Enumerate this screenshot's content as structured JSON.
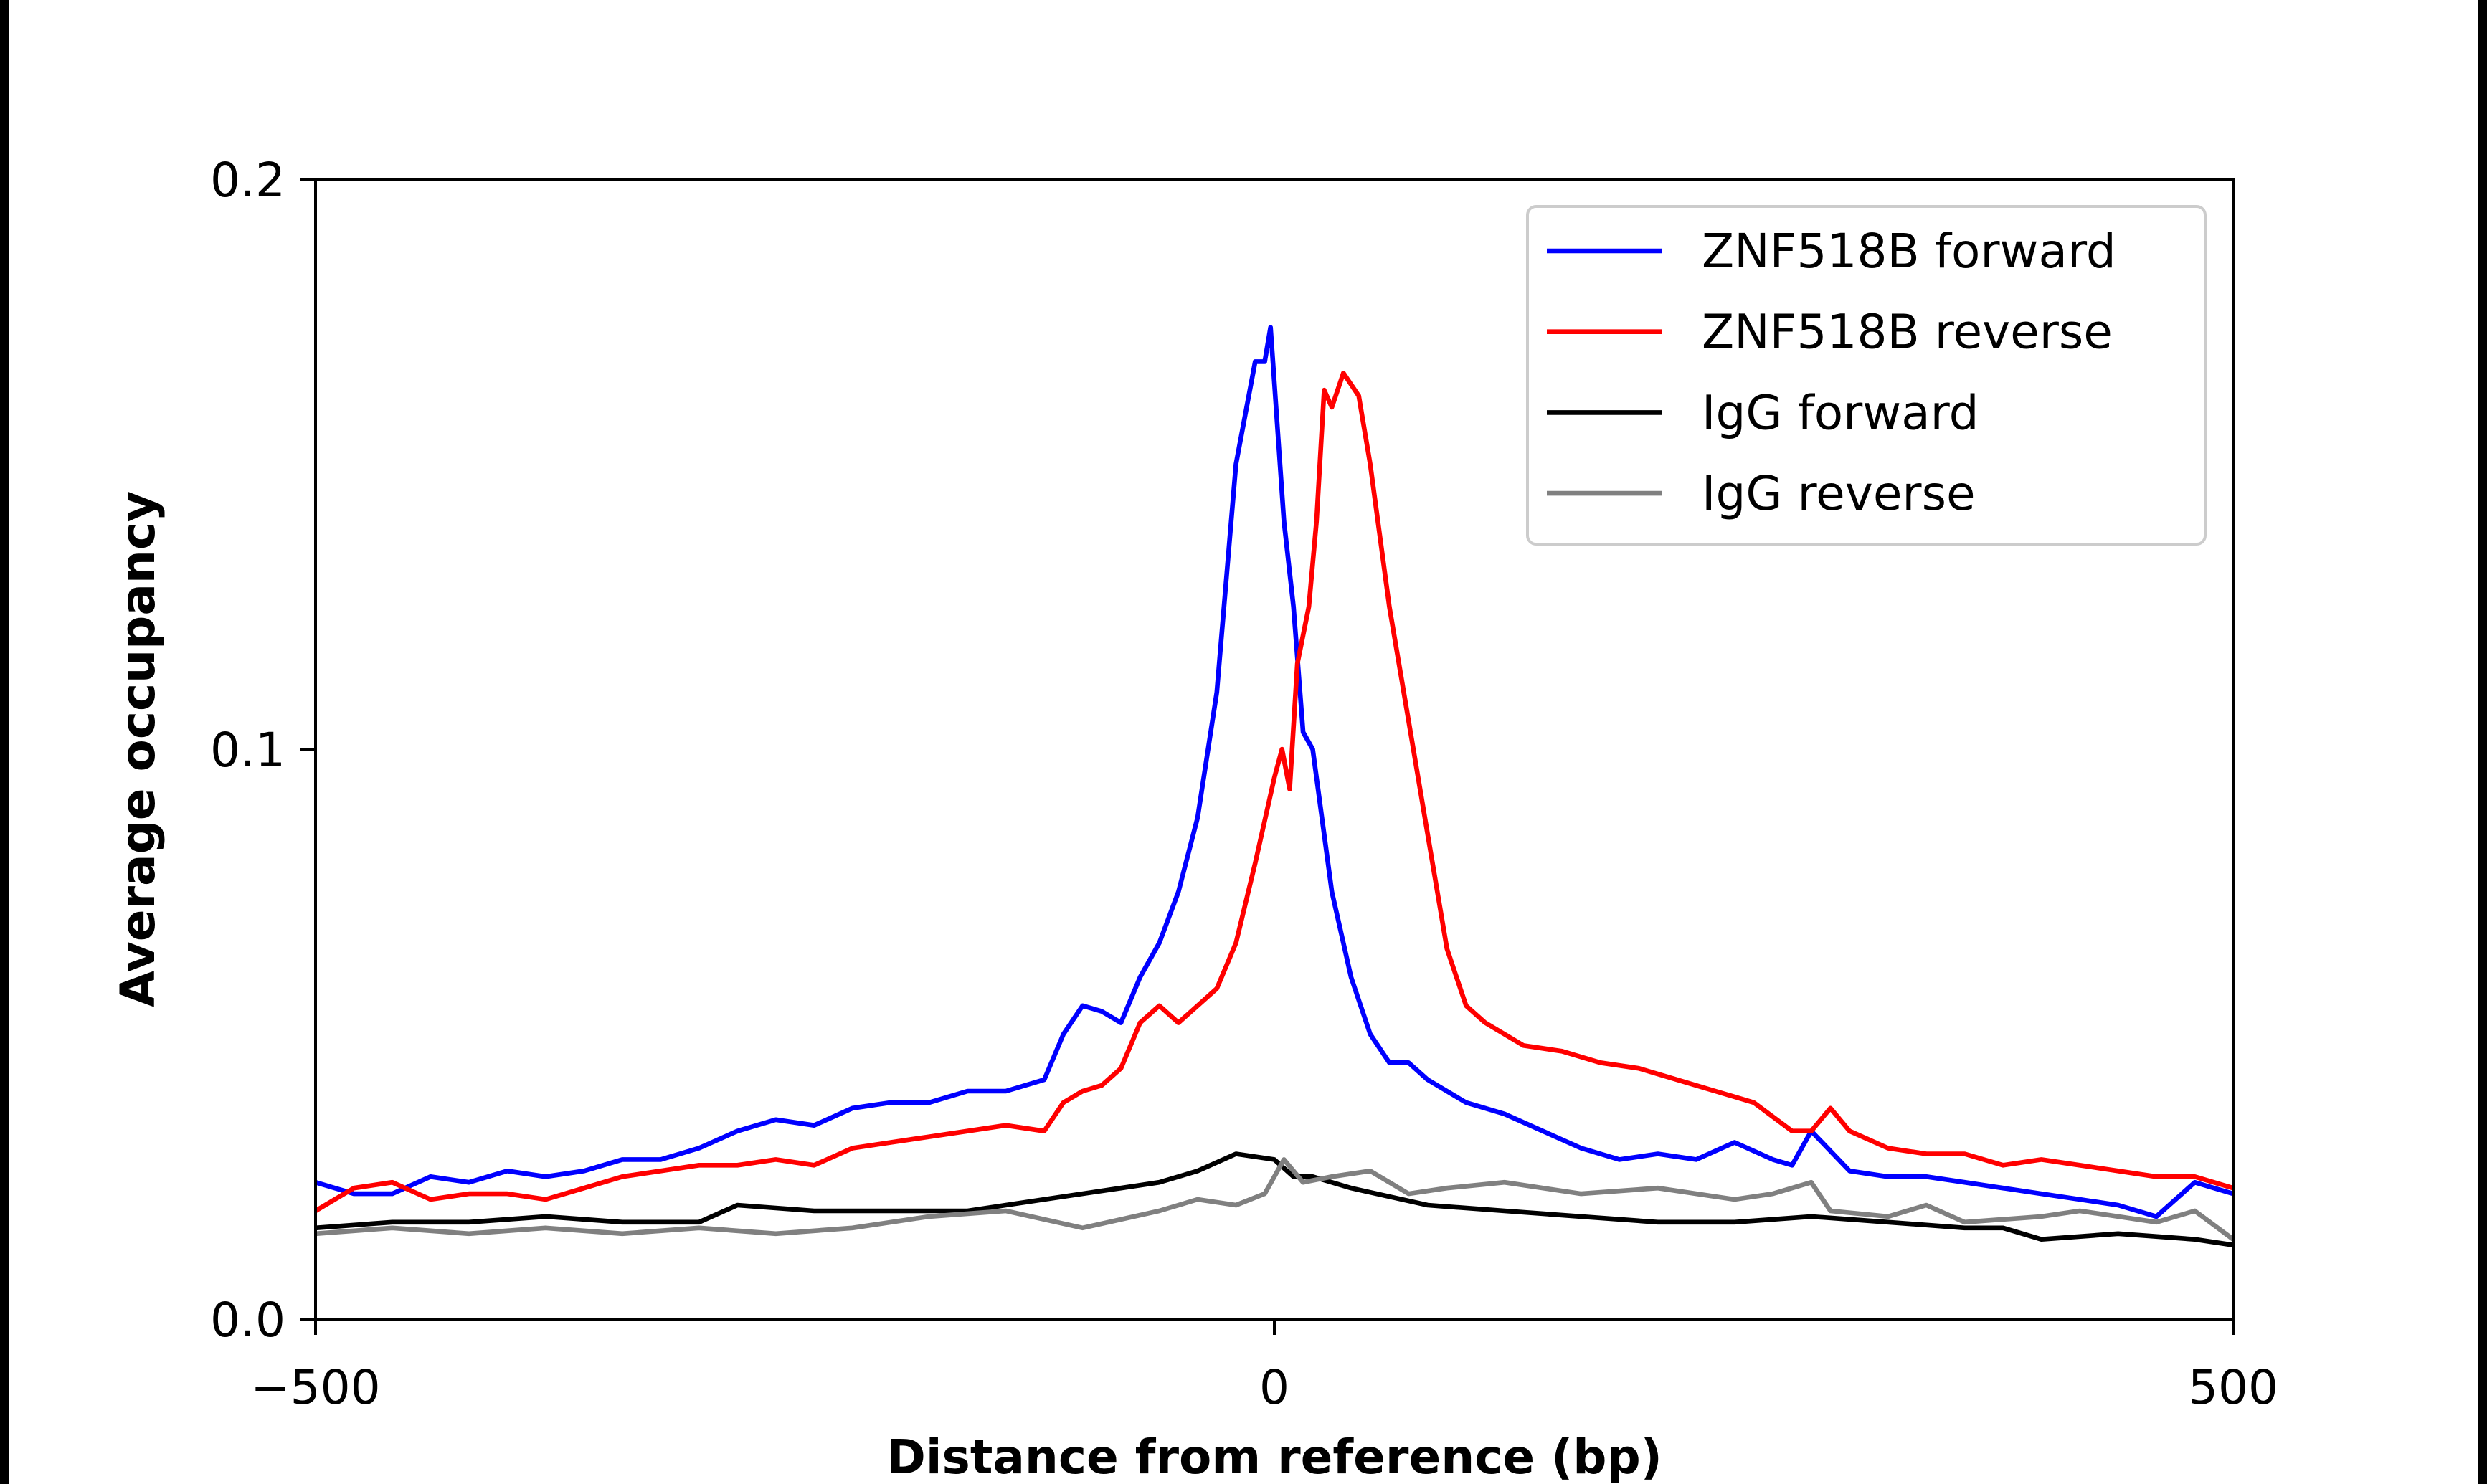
{
  "chart_data": {
    "type": "line",
    "title": "",
    "xlabel": "Distance from reference (bp)",
    "ylabel": "Average occupancy",
    "xlim": [
      -500,
      500
    ],
    "ylim": [
      0.0,
      0.2
    ],
    "xticks": [
      -500,
      0,
      500
    ],
    "xtick_labels": [
      "−500",
      "0",
      "500"
    ],
    "yticks": [
      0.0,
      0.1,
      0.2
    ],
    "ytick_labels": [
      "0.0",
      "0.1",
      "0.2"
    ],
    "grid": false,
    "legend_position": "top-right",
    "series": [
      {
        "name": "ZNF518B forward",
        "color": "#0000ff",
        "x": [
          -500,
          -480,
          -460,
          -440,
          -420,
          -400,
          -380,
          -360,
          -340,
          -320,
          -300,
          -280,
          -260,
          -240,
          -220,
          -200,
          -180,
          -160,
          -140,
          -120,
          -110,
          -100,
          -90,
          -80,
          -70,
          -60,
          -50,
          -40,
          -30,
          -20,
          -10,
          -5,
          -2,
          5,
          10,
          15,
          20,
          30,
          40,
          50,
          60,
          70,
          80,
          100,
          120,
          140,
          160,
          180,
          200,
          220,
          240,
          260,
          270,
          280,
          300,
          320,
          340,
          360,
          380,
          400,
          420,
          440,
          460,
          480,
          500
        ],
        "y": [
          0.024,
          0.022,
          0.022,
          0.025,
          0.024,
          0.026,
          0.025,
          0.026,
          0.028,
          0.028,
          0.03,
          0.033,
          0.035,
          0.034,
          0.037,
          0.038,
          0.038,
          0.04,
          0.04,
          0.042,
          0.05,
          0.055,
          0.054,
          0.052,
          0.06,
          0.066,
          0.075,
          0.088,
          0.11,
          0.15,
          0.168,
          0.168,
          0.174,
          0.14,
          0.125,
          0.103,
          0.1,
          0.075,
          0.06,
          0.05,
          0.045,
          0.045,
          0.042,
          0.038,
          0.036,
          0.033,
          0.03,
          0.028,
          0.029,
          0.028,
          0.031,
          0.028,
          0.027,
          0.033,
          0.026,
          0.025,
          0.025,
          0.024,
          0.023,
          0.022,
          0.021,
          0.02,
          0.018,
          0.024,
          0.022
        ]
      },
      {
        "name": "ZNF518B reverse",
        "color": "#ff0000",
        "x": [
          -500,
          -480,
          -460,
          -440,
          -420,
          -400,
          -380,
          -360,
          -340,
          -320,
          -300,
          -280,
          -260,
          -240,
          -220,
          -200,
          -180,
          -160,
          -140,
          -120,
          -110,
          -100,
          -90,
          -80,
          -70,
          -60,
          -50,
          -40,
          -30,
          -20,
          -10,
          0,
          4,
          8,
          12,
          18,
          22,
          26,
          30,
          36,
          44,
          50,
          60,
          70,
          80,
          90,
          100,
          110,
          130,
          150,
          170,
          190,
          210,
          230,
          250,
          270,
          280,
          290,
          300,
          320,
          340,
          360,
          380,
          400,
          420,
          440,
          460,
          480,
          500
        ],
        "y": [
          0.019,
          0.023,
          0.024,
          0.021,
          0.022,
          0.022,
          0.021,
          0.023,
          0.025,
          0.026,
          0.027,
          0.027,
          0.028,
          0.027,
          0.03,
          0.031,
          0.032,
          0.033,
          0.034,
          0.033,
          0.038,
          0.04,
          0.041,
          0.044,
          0.052,
          0.055,
          0.052,
          0.055,
          0.058,
          0.066,
          0.08,
          0.095,
          0.1,
          0.093,
          0.115,
          0.125,
          0.14,
          0.163,
          0.16,
          0.166,
          0.162,
          0.15,
          0.125,
          0.105,
          0.085,
          0.065,
          0.055,
          0.052,
          0.048,
          0.047,
          0.045,
          0.044,
          0.042,
          0.04,
          0.038,
          0.033,
          0.033,
          0.037,
          0.033,
          0.03,
          0.029,
          0.029,
          0.027,
          0.028,
          0.027,
          0.026,
          0.025,
          0.025,
          0.023
        ]
      },
      {
        "name": "IgG forward",
        "color": "#000000",
        "x": [
          -500,
          -460,
          -420,
          -380,
          -340,
          -300,
          -280,
          -240,
          -200,
          -160,
          -120,
          -80,
          -60,
          -40,
          -20,
          0,
          10,
          20,
          40,
          80,
          120,
          160,
          200,
          240,
          280,
          320,
          360,
          380,
          400,
          440,
          480,
          500
        ],
        "y": [
          0.016,
          0.017,
          0.017,
          0.018,
          0.017,
          0.017,
          0.02,
          0.019,
          0.019,
          0.019,
          0.021,
          0.023,
          0.024,
          0.026,
          0.029,
          0.028,
          0.025,
          0.025,
          0.023,
          0.02,
          0.019,
          0.018,
          0.017,
          0.017,
          0.018,
          0.017,
          0.016,
          0.016,
          0.014,
          0.015,
          0.014,
          0.013
        ]
      },
      {
        "name": "IgG reverse",
        "color": "#808080",
        "x": [
          -500,
          -460,
          -420,
          -380,
          -340,
          -300,
          -260,
          -220,
          -180,
          -140,
          -100,
          -60,
          -40,
          -20,
          -5,
          5,
          15,
          30,
          50,
          70,
          90,
          120,
          160,
          200,
          240,
          260,
          280,
          290,
          320,
          340,
          360,
          400,
          420,
          440,
          460,
          480,
          500
        ],
        "y": [
          0.015,
          0.016,
          0.015,
          0.016,
          0.015,
          0.016,
          0.015,
          0.016,
          0.018,
          0.019,
          0.016,
          0.019,
          0.021,
          0.02,
          0.022,
          0.028,
          0.024,
          0.025,
          0.026,
          0.022,
          0.023,
          0.024,
          0.022,
          0.023,
          0.021,
          0.022,
          0.024,
          0.019,
          0.018,
          0.02,
          0.017,
          0.018,
          0.019,
          0.018,
          0.017,
          0.019,
          0.014
        ]
      }
    ]
  }
}
